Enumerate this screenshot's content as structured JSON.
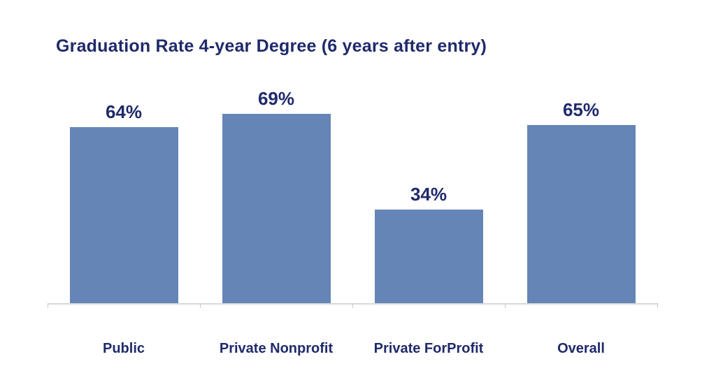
{
  "title": "Graduation Rate 4-year Degree (6 years after entry)",
  "colors": {
    "bar": "#6585b7",
    "text": "#1f2a6b",
    "axis_line": "#d8d8d8",
    "tick": "#c9c9c9",
    "background": "#ffffff"
  },
  "chart_data": {
    "type": "bar",
    "title": "Graduation Rate 4-year Degree (6 years after entry)",
    "categories": [
      "Public",
      "Private Nonprofit",
      "Private ForProfit",
      "Overall"
    ],
    "values": [
      64,
      69,
      34,
      65
    ],
    "value_labels": [
      "64%",
      "69%",
      "34%",
      "65%"
    ],
    "xlabel": "",
    "ylabel": "",
    "ylim": [
      0,
      100
    ],
    "grid": false,
    "legend": "none",
    "y_axis_visible": false,
    "x_axis_visible": true
  }
}
